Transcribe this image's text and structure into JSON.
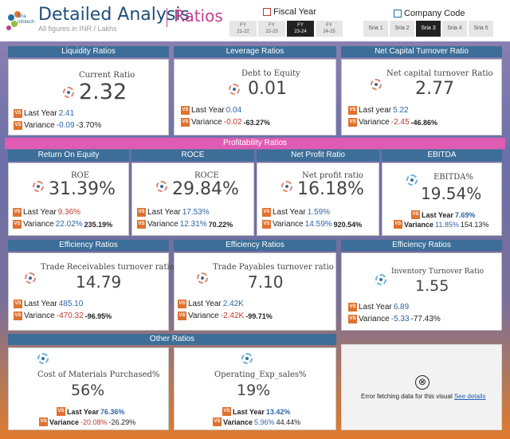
{
  "header": {
    "logo_text_1": "Sria",
    "logo_text_2": "Infotech",
    "title": "Detailed Analysis",
    "subtitle": "All figures in INR / Lakhs",
    "page": "Ratios"
  },
  "fiscal_year": {
    "label": "Fiscal Year",
    "options": [
      {
        "l1": "FY",
        "l2": "21-22",
        "active": false
      },
      {
        "l1": "FY",
        "l2": "22-23",
        "active": false
      },
      {
        "l1": "FY",
        "l2": "23-24",
        "active": true
      },
      {
        "l1": "FY",
        "l2": "24-25",
        "active": false
      }
    ]
  },
  "company_code": {
    "label": "Company Code",
    "options": [
      "Sria 1",
      "Sria 2",
      "Sria 3",
      "Sria 4",
      "Sria 5"
    ],
    "active": "Sria 3"
  },
  "sections": {
    "liquidity": "Liquidity Ratios",
    "leverage": "Leverage Ratios",
    "net_capital": "Net Capital Turnover Ratio",
    "profitability": "Profitability Ratios",
    "roe": "Return On Equity",
    "roce": "ROCE",
    "net_profit": "Net Profit Ratio",
    "ebitda": "EBITDA",
    "efficiency_1": "Efficiency Ratios",
    "efficiency_2": "Efficiency Ratios",
    "efficiency_3": "Efficiency Ratios",
    "other": "Other Ratios"
  },
  "vs_badge": "VS",
  "cards": {
    "current_ratio": {
      "label": "Current Ratio",
      "value": "2.32",
      "ly_label": "Last Year",
      "ly": "2.41",
      "var_label": "Variance",
      "var": "-0.09",
      "var_pct": "-3.70%"
    },
    "debt_equity": {
      "label": "Debt to Equity",
      "value": "0.01",
      "ly_label": "Last Year",
      "ly": "0.04",
      "var_label": "Variance",
      "var": "-0.02",
      "var_pct": "-63.27%"
    },
    "net_capital": {
      "label": "Net capital turnover Ratio",
      "value": "2.77",
      "ly_label": "Last year",
      "ly": "5.22",
      "var_label": "Variance",
      "var": "-2.45",
      "var_pct": "-46.86%"
    },
    "roe": {
      "label": "ROE",
      "value": "31.39%",
      "ly_label": "Last Year",
      "ly": "9.36%",
      "var_label": "Variance",
      "var": "22.02%",
      "var_pct": "235.19%"
    },
    "roce": {
      "label": "ROCE",
      "value": "29.84%",
      "ly_label": "Last Year",
      "ly": "17.53%",
      "var_label": "Variance",
      "var": "12.31%",
      "var_pct": "70.22%"
    },
    "net_profit": {
      "label": "Net profit ratio",
      "value": "16.18%",
      "ly_label": "Last Year",
      "ly": "1.59%",
      "var_label": "Variance",
      "var": "14.59%",
      "var_pct": "920.54%"
    },
    "ebitda": {
      "label": "EBITDA%",
      "value": "19.54%",
      "ly_label": "Last Year",
      "ly": "7.69%",
      "var_label": "Variance",
      "var": "11.85%",
      "var_pct": "154.13%"
    },
    "trade_rec": {
      "label": "Trade Receivables turnover ratio",
      "value": "14.79",
      "ly_label": "Last Year",
      "ly": "485.10",
      "var_label": "Variance",
      "var": "-470.32",
      "var_pct": "-96.95%"
    },
    "trade_pay": {
      "label": "Trade Payables turnover ratio",
      "value": "7.10",
      "ly_label": "Last Year",
      "ly": "2.42K",
      "var_label": "Variance",
      "var": "-2.42K",
      "var_pct": "-99.71%"
    },
    "inventory": {
      "label": "Inventory Turnover Ratio",
      "value": "1.55",
      "ly_label": "Last Year",
      "ly": "6.89",
      "var_label": "Variance",
      "var": "-5.33",
      "var_pct": "-77.43%"
    },
    "cost_materials": {
      "label": "Cost of Materials Purchased%",
      "value": "56%",
      "ly_label": "Last Year",
      "ly": "76.36%",
      "var_label": "Variance",
      "var": "-20.08%",
      "var_pct": "-26.29%"
    },
    "operating_exp": {
      "label": "Operating_Exp_sales%",
      "value": "19%",
      "ly_label": "Last Year",
      "ly": "13.42%",
      "var_label": "Variance",
      "var": "5.96%",
      "var_pct": "44.44%"
    }
  },
  "error": {
    "icon": "⊗",
    "text": "Error fetching data for this visual",
    "link": "See details"
  },
  "colors": {
    "section_bar": "#3c6e98",
    "profitability_bar": "#e05bb2",
    "vs_badge": "#e0712e",
    "positive_blue": "#2f64a6",
    "negative_red": "#c0392b"
  }
}
